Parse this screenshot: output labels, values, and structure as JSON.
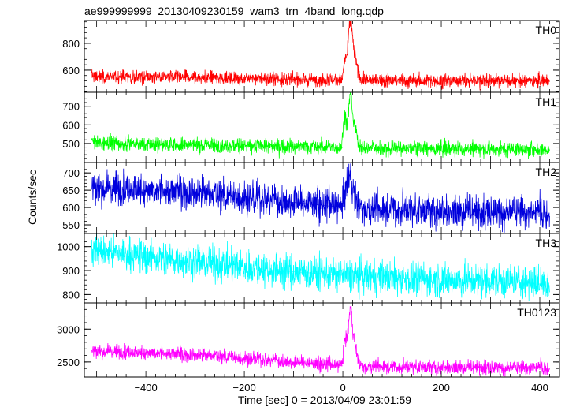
{
  "title": "ae999999999_20130409230159_wam3_trn_4band_long.qdp",
  "xlabel": "Time [sec] 0 = 2013/04/09 23:01:59",
  "ylabel": "Counts/sec",
  "chart_data": {
    "type": "line",
    "title": "ae999999999_20130409230159_wam3_trn_4band_long.qdp",
    "xlabel": "Time [sec] 0 = 2013/04/09 23:01:59",
    "ylabel": "Counts/sec",
    "xlim": [
      -525,
      440
    ],
    "xticks": [
      -400,
      -200,
      0,
      200,
      400
    ],
    "shared_x": true,
    "grid": false,
    "panels": [
      {
        "name": "TH0",
        "color": "#ff0000",
        "ylim": [
          435,
          970
        ],
        "yticks": [
          600,
          800
        ],
        "baseline": {
          "x": [
            -510,
            -300,
            0,
            200,
            420
          ],
          "y": [
            555,
            545,
            525,
            520,
            520
          ]
        },
        "noise": 25,
        "burst": [
          {
            "t": 5,
            "peak": 140,
            "width": 3
          },
          {
            "t": 15,
            "peak": 420,
            "width": 4
          },
          {
            "t": 24,
            "peak": 160,
            "width": 5
          }
        ]
      },
      {
        "name": "TH1",
        "color": "#00ff00",
        "ylim": [
          398,
          775
        ],
        "yticks": [
          500,
          600,
          700
        ],
        "baseline": {
          "x": [
            -510,
            -400,
            -200,
            0,
            200,
            420
          ],
          "y": [
            505,
            495,
            488,
            478,
            470,
            468
          ]
        },
        "noise": 20,
        "burst": [
          {
            "t": 4,
            "peak": 170,
            "width": 3
          },
          {
            "t": 15,
            "peak": 270,
            "width": 4
          },
          {
            "t": 24,
            "peak": 90,
            "width": 5
          }
        ]
      },
      {
        "name": "TH2",
        "color": "#0000dd",
        "ylim": [
          525,
          730
        ],
        "yticks": [
          550,
          600,
          650,
          700
        ],
        "baseline": {
          "x": [
            -510,
            -300,
            -100,
            0,
            200,
            420
          ],
          "y": [
            658,
            645,
            615,
            600,
            590,
            585
          ]
        },
        "noise": 24,
        "burst": [
          {
            "t": 5,
            "peak": 45,
            "width": 3
          },
          {
            "t": 13,
            "peak": 90,
            "width": 4
          },
          {
            "t": 22,
            "peak": 40,
            "width": 5
          }
        ]
      },
      {
        "name": "TH3",
        "color": "#00ffff",
        "ylim": [
          765,
          1055
        ],
        "yticks": [
          800,
          900,
          1000
        ],
        "baseline": {
          "x": [
            -510,
            -300,
            -100,
            0,
            200,
            420
          ],
          "y": [
            985,
            935,
            895,
            880,
            860,
            850
          ]
        },
        "noise": 35,
        "burst": []
      },
      {
        "name": "TH0123",
        "color": "#ff00ff",
        "ylim": [
          2270,
          3400
        ],
        "yticks": [
          2500,
          3000
        ],
        "baseline": {
          "x": [
            -510,
            -300,
            -100,
            0,
            200,
            420
          ],
          "y": [
            2670,
            2615,
            2500,
            2440,
            2420,
            2410
          ]
        },
        "noise": 55,
        "burst": [
          {
            "t": 5,
            "peak": 420,
            "width": 3
          },
          {
            "t": 15,
            "peak": 820,
            "width": 4
          },
          {
            "t": 24,
            "peak": 300,
            "width": 5
          }
        ]
      }
    ]
  }
}
